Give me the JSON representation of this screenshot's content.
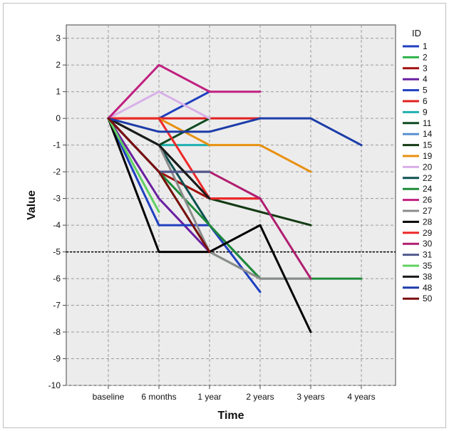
{
  "chart_data": {
    "type": "line",
    "title": "",
    "xlabel": "Time",
    "ylabel": "Value",
    "categories": [
      "baseline",
      "6 months",
      "1 year",
      "2 years",
      "3 years",
      "4 years"
    ],
    "ylim": [
      -10,
      3.5
    ],
    "yticks": [
      3,
      2,
      1,
      0,
      -1,
      -2,
      -3,
      -4,
      -5,
      -6,
      -7,
      -8,
      -9,
      -10
    ],
    "grid": true,
    "reference_line": -5,
    "legend_title": "ID",
    "legend_placement": "right",
    "series": [
      {
        "name": "1",
        "color": "#1f3fbf",
        "values": [
          0,
          0,
          1,
          null,
          null,
          null
        ]
      },
      {
        "name": "2",
        "color": "#2fb34a",
        "values": [
          0,
          -2,
          -5,
          -6,
          null,
          null
        ]
      },
      {
        "name": "3",
        "color": "#a01010",
        "values": [
          0,
          -2,
          -3,
          -3,
          null,
          null
        ]
      },
      {
        "name": "4",
        "color": "#6a1fa0",
        "values": [
          0,
          -3,
          -5,
          null,
          null,
          null
        ]
      },
      {
        "name": "5",
        "color": "#2040c0",
        "values": [
          0,
          -4,
          -4,
          -6.5,
          null,
          null
        ]
      },
      {
        "name": "6",
        "color": "#e02020",
        "values": [
          0,
          0,
          0,
          0,
          null,
          null
        ]
      },
      {
        "name": "9",
        "color": "#20b0b0",
        "values": [
          0,
          -1,
          -1,
          null,
          null,
          null
        ]
      },
      {
        "name": "11",
        "color": "#0f4a1f",
        "values": [
          0,
          -1,
          0,
          null,
          null,
          null
        ]
      },
      {
        "name": "14",
        "color": "#5a8fd0",
        "values": [
          0,
          -2,
          -2,
          null,
          null,
          null
        ]
      },
      {
        "name": "15",
        "color": "#143a14",
        "values": [
          0,
          -1,
          -3,
          -3.5,
          -4,
          null
        ]
      },
      {
        "name": "19",
        "color": "#e89010",
        "values": [
          0,
          0,
          -1,
          -1,
          -2,
          null
        ]
      },
      {
        "name": "20",
        "color": "#d8b0e8",
        "values": [
          0,
          1,
          0,
          null,
          null,
          null
        ]
      },
      {
        "name": "22",
        "color": "#0e5050",
        "values": [
          0,
          -1,
          -4,
          -6,
          null,
          null
        ]
      },
      {
        "name": "24",
        "color": "#1f8a3a",
        "values": [
          0,
          -2,
          -4,
          -6,
          -6,
          -6
        ]
      },
      {
        "name": "26",
        "color": "#c02080",
        "values": [
          0,
          2,
          1,
          1,
          null,
          null
        ]
      },
      {
        "name": "27",
        "color": "#8c8c8c",
        "values": [
          0,
          -1,
          -5,
          -6,
          -6,
          null
        ]
      },
      {
        "name": "28",
        "color": "#000000",
        "values": [
          0,
          -5,
          -5,
          -4,
          -8,
          null
        ]
      },
      {
        "name": "29",
        "color": "#ee2828",
        "values": [
          0,
          0,
          -3,
          -3,
          null,
          null
        ]
      },
      {
        "name": "30",
        "color": "#b01e70",
        "values": [
          0,
          -2,
          -2,
          -3,
          -6,
          null
        ]
      },
      {
        "name": "31",
        "color": "#505a8c",
        "values": [
          0,
          -2,
          -2,
          null,
          null,
          null
        ]
      },
      {
        "name": "35",
        "color": "#60d060",
        "values": [
          0,
          -3.5,
          null,
          null,
          null,
          null
        ]
      },
      {
        "name": "38",
        "color": "#1a1a1a",
        "values": [
          0,
          -1,
          -3,
          null,
          null,
          null
        ]
      },
      {
        "name": "48",
        "color": "#1c3ca8",
        "values": [
          0,
          -0.5,
          -0.5,
          0,
          0,
          -1
        ]
      },
      {
        "name": "50",
        "color": "#7a0e0e",
        "values": [
          0,
          -2,
          -5,
          null,
          null,
          null
        ]
      }
    ]
  }
}
